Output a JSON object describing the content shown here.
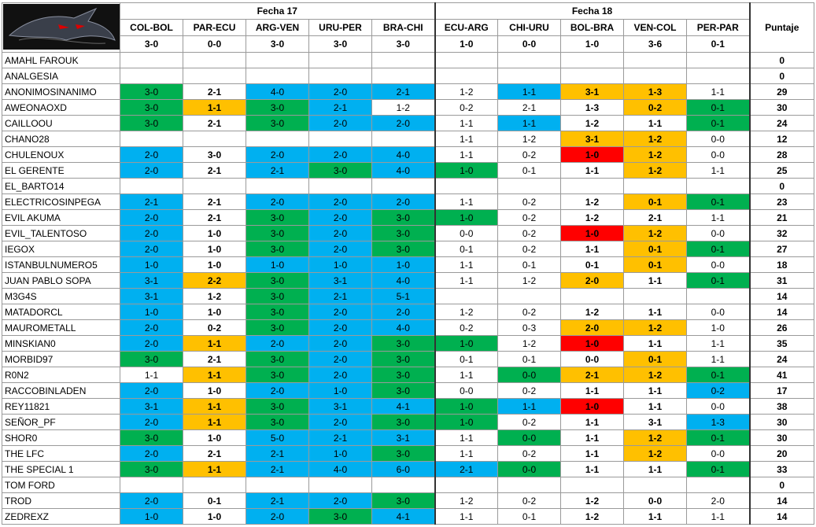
{
  "header": {
    "groups": [
      "Fecha 17",
      "Fecha 18"
    ],
    "score_label": "Puntaje",
    "matches": [
      "COL-BOL",
      "PAR-ECU",
      "ARG-VEN",
      "URU-PER",
      "BRA-CHI",
      "ECU-ARG",
      "CHI-URU",
      "BOL-BRA",
      "VEN-COL",
      "PER-PAR"
    ],
    "results": [
      "3-0",
      "0-0",
      "3-0",
      "3-0",
      "3-0",
      "1-0",
      "0-0",
      "1-0",
      "3-6",
      "0-1"
    ]
  },
  "rows": [
    {
      "name": "AMAHL FAROUK",
      "picks": [
        null,
        null,
        null,
        null,
        null,
        null,
        null,
        null,
        null,
        null
      ],
      "colors": [
        null,
        null,
        null,
        null,
        null,
        null,
        null,
        null,
        null,
        null
      ],
      "score": 0
    },
    {
      "name": "ANALGESIA",
      "picks": [
        null,
        null,
        null,
        null,
        null,
        null,
        null,
        null,
        null,
        null
      ],
      "colors": [
        null,
        null,
        null,
        null,
        null,
        null,
        null,
        null,
        null,
        null
      ],
      "score": 0
    },
    {
      "name": "ANONIMOSINANIMO",
      "picks": [
        "3-0",
        "2-1",
        "4-0",
        "2-0",
        "2-1",
        "1-2",
        "1-1",
        "3-1",
        "1-3",
        "1-1"
      ],
      "colors": [
        "green",
        "white",
        "blue",
        "blue",
        "blue",
        "white",
        "blue",
        "orange",
        "orange",
        "white"
      ],
      "score": 29
    },
    {
      "name": "AWEONAOXD",
      "picks": [
        "3-0",
        "1-1",
        "3-0",
        "2-1",
        "1-2",
        "0-2",
        "2-1",
        "1-3",
        "0-2",
        "0-1"
      ],
      "colors": [
        "green",
        "orange",
        "green",
        "blue",
        "white",
        "white",
        "white",
        "white",
        "orange",
        "green"
      ],
      "score": 30
    },
    {
      "name": "CAILLOOU",
      "picks": [
        "3-0",
        "2-1",
        "3-0",
        "2-0",
        "2-0",
        "1-1",
        "1-1",
        "1-2",
        "1-1",
        "0-1"
      ],
      "colors": [
        "green",
        "white",
        "green",
        "blue",
        "blue",
        "white",
        "blue",
        "white",
        "white",
        "green"
      ],
      "score": 24
    },
    {
      "name": "CHANO28",
      "picks": [
        null,
        null,
        null,
        null,
        null,
        "1-1",
        "1-2",
        "3-1",
        "1-2",
        "0-0"
      ],
      "colors": [
        null,
        null,
        null,
        null,
        null,
        "white",
        "white",
        "orange",
        "orange",
        "white"
      ],
      "score": 12
    },
    {
      "name": "CHULENOUX",
      "picks": [
        "2-0",
        "3-0",
        "2-0",
        "2-0",
        "4-0",
        "1-1",
        "0-2",
        "1-0",
        "1-2",
        "0-0"
      ],
      "colors": [
        "blue",
        "white",
        "blue",
        "blue",
        "blue",
        "white",
        "white",
        "red",
        "orange",
        "white"
      ],
      "score": 28
    },
    {
      "name": "EL GERENTE",
      "picks": [
        "2-0",
        "2-1",
        "2-1",
        "3-0",
        "4-0",
        "1-0",
        "0-1",
        "1-1",
        "1-2",
        "1-1"
      ],
      "colors": [
        "blue",
        "white",
        "blue",
        "green",
        "blue",
        "green",
        "white",
        "white",
        "orange",
        "white"
      ],
      "score": 25
    },
    {
      "name": "EL_BARTO14",
      "picks": [
        null,
        null,
        null,
        null,
        null,
        null,
        null,
        null,
        null,
        null
      ],
      "colors": [
        null,
        null,
        null,
        null,
        null,
        null,
        null,
        null,
        null,
        null
      ],
      "score": 0
    },
    {
      "name": "ELECTRICOSINPEGA",
      "picks": [
        "2-1",
        "2-1",
        "2-0",
        "2-0",
        "2-0",
        "1-1",
        "0-2",
        "1-2",
        "0-1",
        "0-1"
      ],
      "colors": [
        "blue",
        "white",
        "blue",
        "blue",
        "blue",
        "white",
        "white",
        "white",
        "orange",
        "green"
      ],
      "score": 23
    },
    {
      "name": "EVIL AKUMA",
      "picks": [
        "2-0",
        "2-1",
        "3-0",
        "2-0",
        "3-0",
        "1-0",
        "0-2",
        "1-2",
        "2-1",
        "1-1"
      ],
      "colors": [
        "blue",
        "white",
        "green",
        "blue",
        "green",
        "green",
        "white",
        "white",
        "white",
        "white"
      ],
      "score": 21
    },
    {
      "name": "EVIL_TALENTOSO",
      "picks": [
        "2-0",
        "1-0",
        "3-0",
        "2-0",
        "3-0",
        "0-0",
        "0-2",
        "1-0",
        "1-2",
        "0-0"
      ],
      "colors": [
        "blue",
        "white",
        "green",
        "blue",
        "green",
        "white",
        "white",
        "red",
        "orange",
        "white"
      ],
      "score": 32
    },
    {
      "name": "IEGOX",
      "picks": [
        "2-0",
        "1-0",
        "3-0",
        "2-0",
        "3-0",
        "0-1",
        "0-2",
        "1-1",
        "0-1",
        "0-1"
      ],
      "colors": [
        "blue",
        "white",
        "green",
        "blue",
        "green",
        "white",
        "white",
        "white",
        "orange",
        "green"
      ],
      "score": 27
    },
    {
      "name": "ISTANBULNUMERO5",
      "picks": [
        "1-0",
        "1-0",
        "1-0",
        "1-0",
        "1-0",
        "1-1",
        "0-1",
        "0-1",
        "0-1",
        "0-0"
      ],
      "colors": [
        "blue",
        "white",
        "blue",
        "blue",
        "blue",
        "white",
        "white",
        "white",
        "orange",
        "white"
      ],
      "score": 18
    },
    {
      "name": "JUAN PABLO SOPA",
      "picks": [
        "3-1",
        "2-2",
        "3-0",
        "3-1",
        "4-0",
        "1-1",
        "1-2",
        "2-0",
        "1-1",
        "0-1"
      ],
      "colors": [
        "blue",
        "orange",
        "green",
        "blue",
        "blue",
        "white",
        "white",
        "orange",
        "white",
        "green"
      ],
      "score": 31
    },
    {
      "name": "M3G4S",
      "picks": [
        "3-1",
        "1-2",
        "3-0",
        "2-1",
        "5-1",
        null,
        null,
        null,
        null,
        null
      ],
      "colors": [
        "blue",
        "white",
        "green",
        "blue",
        "blue",
        null,
        null,
        null,
        null,
        null
      ],
      "score": 14
    },
    {
      "name": "MATADORCL",
      "picks": [
        "1-0",
        "1-0",
        "3-0",
        "2-0",
        "2-0",
        "1-2",
        "0-2",
        "1-2",
        "1-1",
        "0-0"
      ],
      "colors": [
        "blue",
        "white",
        "green",
        "blue",
        "blue",
        "white",
        "white",
        "white",
        "white",
        "white"
      ],
      "score": 14
    },
    {
      "name": "MAUROMETALL",
      "picks": [
        "2-0",
        "0-2",
        "3-0",
        "2-0",
        "4-0",
        "0-2",
        "0-3",
        "2-0",
        "1-2",
        "1-0"
      ],
      "colors": [
        "blue",
        "white",
        "green",
        "blue",
        "blue",
        "white",
        "white",
        "orange",
        "orange",
        "white"
      ],
      "score": 26
    },
    {
      "name": "MINSKIAN0",
      "picks": [
        "2-0",
        "1-1",
        "2-0",
        "2-0",
        "3-0",
        "1-0",
        "1-2",
        "1-0",
        "1-1",
        "1-1"
      ],
      "colors": [
        "blue",
        "orange",
        "blue",
        "blue",
        "green",
        "green",
        "white",
        "red",
        "white",
        "white"
      ],
      "score": 35
    },
    {
      "name": "MORBID97",
      "picks": [
        "3-0",
        "2-1",
        "3-0",
        "2-0",
        "3-0",
        "0-1",
        "0-1",
        "0-0",
        "0-1",
        "1-1"
      ],
      "colors": [
        "green",
        "white",
        "green",
        "blue",
        "green",
        "white",
        "white",
        "white",
        "orange",
        "white"
      ],
      "score": 24
    },
    {
      "name": "R0N2",
      "picks": [
        "1-1",
        "1-1",
        "3-0",
        "2-0",
        "3-0",
        "1-1",
        "0-0",
        "2-1",
        "1-2",
        "0-1"
      ],
      "colors": [
        "white",
        "orange",
        "green",
        "blue",
        "green",
        "white",
        "green",
        "orange",
        "orange",
        "green"
      ],
      "score": 41
    },
    {
      "name": "RACCOBINLADEN",
      "picks": [
        "2-0",
        "1-0",
        "2-0",
        "1-0",
        "3-0",
        "0-0",
        "0-2",
        "1-1",
        "1-1",
        "0-2"
      ],
      "colors": [
        "blue",
        "white",
        "blue",
        "blue",
        "green",
        "white",
        "white",
        "white",
        "white",
        "blue"
      ],
      "score": 17
    },
    {
      "name": "REY11821",
      "picks": [
        "3-1",
        "1-1",
        "3-0",
        "3-1",
        "4-1",
        "1-0",
        "1-1",
        "1-0",
        "1-1",
        "0-0"
      ],
      "colors": [
        "blue",
        "orange",
        "green",
        "blue",
        "blue",
        "green",
        "blue",
        "red",
        "white",
        "white"
      ],
      "score": 38
    },
    {
      "name": "SEÑOR_PF",
      "picks": [
        "2-0",
        "1-1",
        "3-0",
        "2-0",
        "3-0",
        "1-0",
        "0-2",
        "1-1",
        "3-1",
        "1-3"
      ],
      "colors": [
        "blue",
        "orange",
        "green",
        "blue",
        "green",
        "green",
        "white",
        "white",
        "white",
        "blue"
      ],
      "score": 30
    },
    {
      "name": "SHOR0",
      "picks": [
        "3-0",
        "1-0",
        "5-0",
        "2-1",
        "3-1",
        "1-1",
        "0-0",
        "1-1",
        "1-2",
        "0-1"
      ],
      "colors": [
        "green",
        "white",
        "blue",
        "blue",
        "blue",
        "white",
        "green",
        "white",
        "orange",
        "green"
      ],
      "score": 30
    },
    {
      "name": "THE LFC",
      "picks": [
        "2-0",
        "2-1",
        "2-1",
        "1-0",
        "3-0",
        "1-1",
        "0-2",
        "1-1",
        "1-2",
        "0-0"
      ],
      "colors": [
        "blue",
        "white",
        "blue",
        "blue",
        "green",
        "white",
        "white",
        "white",
        "orange",
        "white"
      ],
      "score": 20
    },
    {
      "name": "THE SPECIAL 1",
      "picks": [
        "3-0",
        "1-1",
        "2-1",
        "4-0",
        "6-0",
        "2-1",
        "0-0",
        "1-1",
        "1-1",
        "0-1"
      ],
      "colors": [
        "green",
        "orange",
        "blue",
        "blue",
        "blue",
        "blue",
        "green",
        "white",
        "white",
        "green"
      ],
      "score": 33
    },
    {
      "name": "TOM FORD",
      "picks": [
        null,
        null,
        null,
        null,
        null,
        null,
        null,
        null,
        null,
        null
      ],
      "colors": [
        null,
        null,
        null,
        null,
        null,
        null,
        null,
        null,
        null,
        null
      ],
      "score": 0
    },
    {
      "name": "TROD",
      "picks": [
        "2-0",
        "0-1",
        "2-1",
        "2-0",
        "3-0",
        "1-2",
        "0-2",
        "1-2",
        "0-0",
        "2-0"
      ],
      "colors": [
        "blue",
        "white",
        "blue",
        "blue",
        "green",
        "white",
        "white",
        "white",
        "white",
        "white"
      ],
      "score": 14
    },
    {
      "name": "ZEDREXZ",
      "picks": [
        "1-0",
        "1-0",
        "2-0",
        "3-0",
        "4-1",
        "1-1",
        "0-1",
        "1-2",
        "1-1",
        "1-1"
      ],
      "colors": [
        "blue",
        "white",
        "blue",
        "green",
        "blue",
        "white",
        "white",
        "white",
        "white",
        "white"
      ],
      "score": 14
    }
  ]
}
